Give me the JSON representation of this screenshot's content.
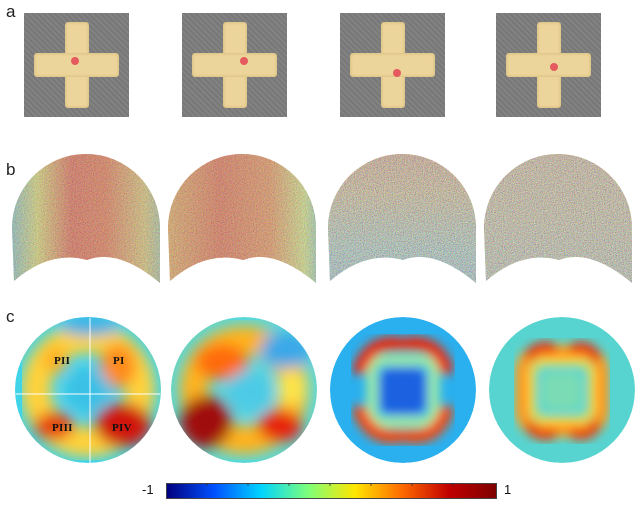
{
  "panels": {
    "a": {
      "label": "a"
    },
    "b": {
      "label": "b"
    },
    "c": {
      "label": "c"
    }
  },
  "region_labels": {
    "p1": "PI",
    "p2": "PII",
    "p3": "PIII",
    "p4": "PIV"
  },
  "colorbar": {
    "min_label": "-1",
    "max_label": "1",
    "colors": [
      "#00007f",
      "#0050ff",
      "#00d4ff",
      "#7dff7a",
      "#ffe600",
      "#ff6a00",
      "#c00000",
      "#7f0000"
    ]
  },
  "colors": {
    "photo_background": "#7d7d7d",
    "specimen": "#ecd59a",
    "marker": "#e45a5e"
  }
}
